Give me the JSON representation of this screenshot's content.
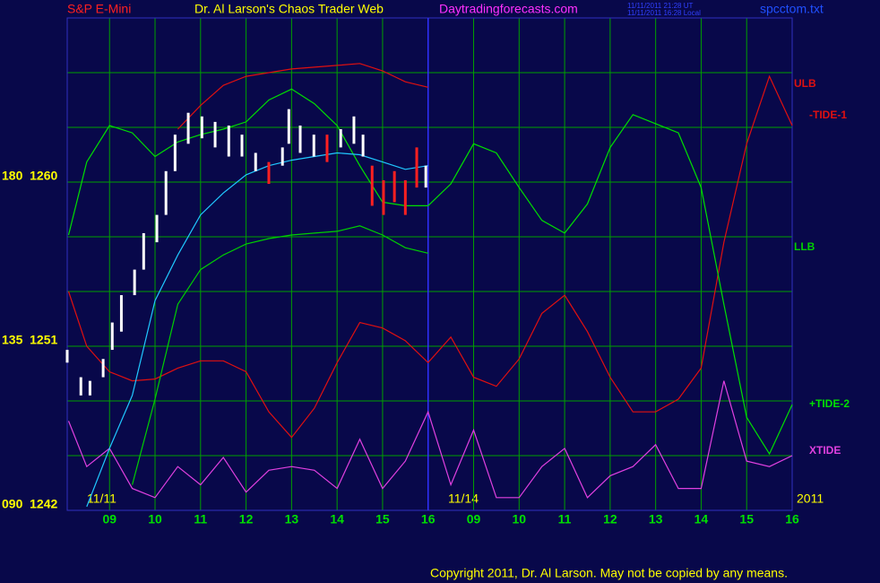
{
  "chart_data": {
    "type": "line",
    "title": "S&P E-Mini",
    "subtitle": "Dr. Al Larson's Chaos Trader Web",
    "annotations": [
      "Daytradingforecasts.com",
      "11/11/2011 21:28 UT",
      "11/11/2011 16:28 Local",
      "spcctom.txt",
      "11/11",
      "11/14",
      "2011",
      "Copyright 2011, Dr. Al Larson. May not be copied by any means."
    ],
    "xlim": [
      0.07,
      16
    ],
    "ylim": [
      1242,
      1269
    ],
    "xticks": [
      {
        "value": 1,
        "label": "09"
      },
      {
        "value": 2,
        "label": "10"
      },
      {
        "value": 3,
        "label": "11"
      },
      {
        "value": 4,
        "label": "12"
      },
      {
        "value": 5,
        "label": "13"
      },
      {
        "value": 6,
        "label": "14"
      },
      {
        "value": 7,
        "label": "15"
      },
      {
        "value": 8,
        "label": "16"
      },
      {
        "value": 9,
        "label": "09"
      },
      {
        "value": 10,
        "label": "10"
      },
      {
        "value": 11,
        "label": "11"
      },
      {
        "value": 12,
        "label": "12"
      },
      {
        "value": 13,
        "label": "13"
      },
      {
        "value": 14,
        "label": "14"
      },
      {
        "value": 15,
        "label": "15"
      },
      {
        "value": 16,
        "label": "16"
      }
    ],
    "yticks": [
      {
        "value": 1260,
        "label": "180  1260"
      },
      {
        "value": 1251,
        "label": "135  1251"
      },
      {
        "value": 1242,
        "label": "090  1242"
      }
    ],
    "ygrid": [
      1242,
      1245,
      1248,
      1251,
      1254,
      1257,
      1260,
      1263,
      1266,
      1269
    ],
    "day_break": 8,
    "grid": true,
    "x": [
      0.1,
      0.5,
      1,
      1.5,
      2,
      2.5,
      3,
      3.5,
      4,
      4.5,
      5,
      5.5,
      6,
      6.5,
      7,
      7.5,
      8,
      8.5,
      9,
      9.5,
      10,
      10.5,
      11,
      11.5,
      12,
      12.5,
      13,
      13.5,
      14,
      14.5,
      15,
      15.5,
      16
    ],
    "series": [
      {
        "name": "ULB",
        "color": "#e01010",
        "values": [
          null,
          null,
          null,
          null,
          null,
          1262.9,
          1264.2,
          1265.3,
          1265.8,
          1266.0,
          1266.2,
          1266.3,
          1266.4,
          1266.5,
          1266.1,
          1265.5,
          1265.2,
          null,
          null,
          null,
          null,
          null,
          null,
          null,
          null,
          null,
          null,
          null,
          null,
          null,
          null,
          null,
          null
        ]
      },
      {
        "name": "-TIDE-1",
        "color": "#e01010",
        "values": [
          1254.0,
          1251.0,
          1249.6,
          1249.1,
          1249.2,
          1249.8,
          1250.2,
          1250.2,
          1249.6,
          1247.4,
          1246.0,
          1247.6,
          1250.1,
          1252.3,
          1252.0,
          1251.3,
          1250.1,
          1251.5,
          1249.3,
          1248.8,
          1250.3,
          1252.8,
          1253.8,
          1251.8,
          1249.3,
          1247.4,
          1247.4,
          1248.1,
          1249.8,
          1256.7,
          1262.1,
          1265.8,
          1263.1
        ]
      },
      {
        "name": "LLB",
        "color": "#00d000",
        "values": [
          null,
          null,
          null,
          1243.4,
          1248.1,
          1253.3,
          1255.2,
          1256.0,
          1256.6,
          1256.9,
          1257.1,
          1257.2,
          1257.3,
          1257.6,
          1257.1,
          1256.4,
          1256.1,
          null,
          null,
          null,
          null,
          null,
          null,
          null,
          null,
          null,
          null,
          null,
          null,
          null,
          null,
          null,
          null
        ]
      },
      {
        "name": "+TIDE-2",
        "color": "#00e000",
        "values": [
          1257.1,
          1261.1,
          1263.1,
          1262.7,
          1261.4,
          1262.2,
          1262.6,
          1262.9,
          1263.3,
          1264.5,
          1265.1,
          1264.3,
          1263.1,
          1260.9,
          1258.9,
          1258.7,
          1258.7,
          1259.9,
          1262.1,
          1261.6,
          1259.7,
          1257.9,
          1257.2,
          1258.8,
          1261.9,
          1263.7,
          1263.2,
          1262.7,
          1259.7,
          1253.3,
          1247.1,
          1245.1,
          1247.8
        ]
      },
      {
        "name": "XTIDE",
        "color": "#e040e0",
        "values": [
          1246.9,
          1244.4,
          1245.4,
          1243.2,
          1242.7,
          1244.4,
          1243.4,
          1244.9,
          1243.0,
          1244.2,
          1244.4,
          1244.2,
          1243.2,
          1245.9,
          1243.2,
          1244.7,
          1247.4,
          1243.4,
          1246.4,
          1242.7,
          1242.7,
          1244.4,
          1245.4,
          1242.7,
          1243.9,
          1244.4,
          1245.6,
          1243.2,
          1243.2,
          1249.1,
          1244.7,
          1244.4,
          1245.0
        ]
      },
      {
        "color": "#20c8ff",
        "values": [
          null,
          1242.2,
          1245.4,
          1248.3,
          1253.5,
          1256.0,
          1258.2,
          1259.4,
          1260.4,
          1260.9,
          1261.2,
          1261.4,
          1261.6,
          1261.5,
          1261.1,
          1260.7,
          1260.9,
          null,
          null,
          null,
          null,
          null,
          null,
          null,
          null,
          null,
          null,
          null,
          null,
          null,
          null,
          null,
          null
        ]
      }
    ],
    "price_bars": {
      "x": [
        0.07,
        0.37,
        0.57,
        0.86,
        1.06,
        1.26,
        1.55,
        1.75,
        2.04,
        2.24,
        2.44,
        2.73,
        3.03,
        3.32,
        3.62,
        3.91,
        4.21,
        4.5,
        4.8,
        4.94,
        5.19,
        5.49,
        5.78,
        6.08,
        6.37,
        6.57,
        6.77,
        7.02,
        7.26,
        7.5,
        7.75,
        7.95
      ],
      "low": [
        1250.1,
        1248.3,
        1248.3,
        1249.3,
        1250.8,
        1251.8,
        1253.8,
        1255.2,
        1256.7,
        1258.2,
        1260.6,
        1262.1,
        1262.4,
        1261.9,
        1261.4,
        1261.4,
        1260.6,
        1259.9,
        1260.9,
        1262.1,
        1261.6,
        1261.4,
        1261.1,
        1261.9,
        1262.1,
        1261.4,
        1258.7,
        1258.2,
        1258.9,
        1258.2,
        1259.7,
        1259.7
      ],
      "high": [
        1250.8,
        1249.3,
        1249.1,
        1250.3,
        1252.3,
        1253.8,
        1255.2,
        1257.2,
        1258.2,
        1260.6,
        1262.6,
        1263.8,
        1263.6,
        1263.3,
        1263.1,
        1262.6,
        1261.6,
        1261.1,
        1261.9,
        1264.0,
        1263.1,
        1262.6,
        1262.6,
        1262.9,
        1263.6,
        1262.6,
        1260.9,
        1260.1,
        1260.6,
        1260.1,
        1261.9,
        1260.9
      ],
      "colors": [
        "#ffffff",
        "#ffffff",
        "#ffffff",
        "#ffffff",
        "#ffffff",
        "#ffffff",
        "#ffffff",
        "#ffffff",
        "#ffffff",
        "#ffffff",
        "#ffffff",
        "#ffffff",
        "#ffffff",
        "#ffffff",
        "#ffffff",
        "#ffffff",
        "#ffffff",
        "#ff2020",
        "#ffffff",
        "#ffffff",
        "#ffffff",
        "#ffffff",
        "#ff2020",
        "#ffffff",
        "#ffffff",
        "#ffffff",
        "#ff2020",
        "#ff2020",
        "#ff2020",
        "#ff2020",
        "#ff2020",
        "#ffffff"
      ]
    }
  }
}
